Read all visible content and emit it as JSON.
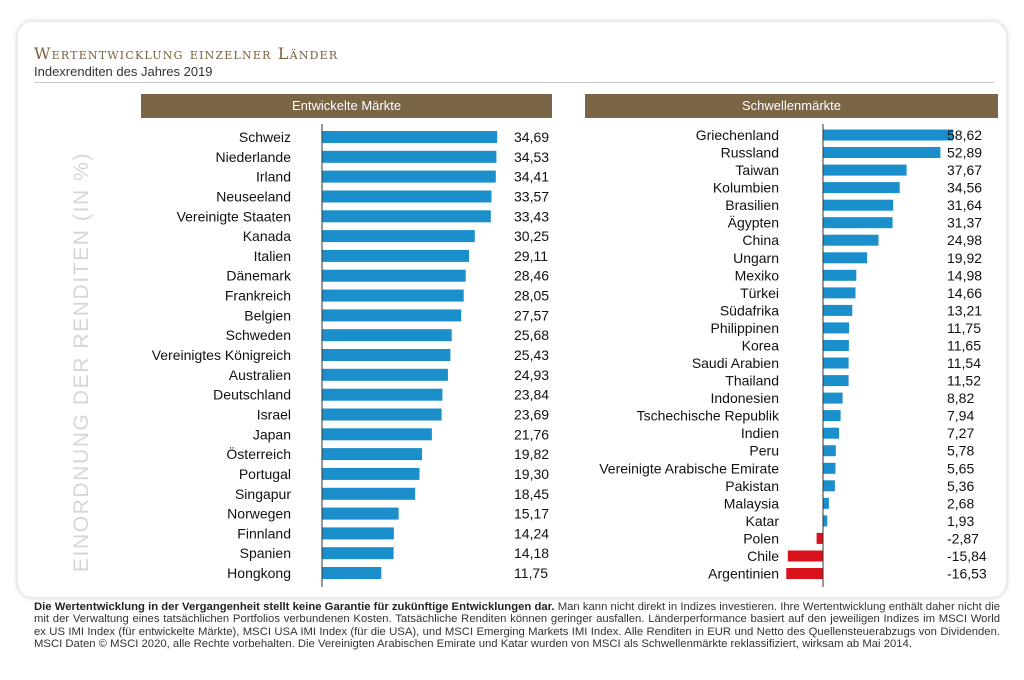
{
  "header": {
    "title": "Wertentwicklung einzelner Länder",
    "subtitle": "Indexrenditen des Jahres 2019"
  },
  "side_label": "EINORDNUNG DER RENDITEN (IN %)",
  "chart_data": [
    {
      "type": "bar",
      "orientation": "horizontal",
      "title": "Entwickelte Märkte",
      "categories": [
        "Schweiz",
        "Niederlande",
        "Irland",
        "Neuseeland",
        "Vereinigte Staaten",
        "Kanada",
        "Italien",
        "Dänemark",
        "Frankreich",
        "Belgien",
        "Schweden",
        "Vereinigtes Königreich",
        "Australien",
        "Deutschland",
        "Israel",
        "Japan",
        "Österreich",
        "Portugal",
        "Singapur",
        "Norwegen",
        "Finnland",
        "Spanien",
        "Hongkong"
      ],
      "values": [
        34.69,
        34.53,
        34.41,
        33.57,
        33.43,
        30.25,
        29.11,
        28.46,
        28.05,
        27.57,
        25.68,
        25.43,
        24.93,
        23.84,
        23.69,
        21.76,
        19.82,
        19.3,
        18.45,
        15.17,
        14.24,
        14.18,
        11.75
      ],
      "value_labels": [
        "34,69",
        "34,53",
        "34,41",
        "33,57",
        "33,43",
        "30,25",
        "29,11",
        "28,46",
        "28,05",
        "27,57",
        "25,68",
        "25,43",
        "24,93",
        "23,84",
        "23,69",
        "21,76",
        "19,82",
        "19,30",
        "18,45",
        "15,17",
        "14,24",
        "14,18",
        "11,75"
      ],
      "positive_color": "#1a8fcc",
      "negative_color": "#d9121c"
    },
    {
      "type": "bar",
      "orientation": "horizontal",
      "title": "Schwellenmärkte",
      "categories": [
        "Griechenland",
        "Russland",
        "Taiwan",
        "Kolumbien",
        "Brasilien",
        "Ägypten",
        "China",
        "Ungarn",
        "Mexiko",
        "Türkei",
        "Südafrika",
        "Philippinen",
        "Korea",
        "Saudi Arabien",
        "Thailand",
        "Indonesien",
        "Tschechische Republik",
        "Indien",
        "Peru",
        "Vereinigte Arabische Emirate",
        "Pakistan",
        "Malaysia",
        "Katar",
        "Polen",
        "Chile",
        "Argentinien"
      ],
      "values": [
        58.62,
        52.89,
        37.67,
        34.56,
        31.64,
        31.37,
        24.98,
        19.92,
        14.98,
        14.66,
        13.21,
        11.75,
        11.65,
        11.54,
        11.52,
        8.82,
        7.94,
        7.27,
        5.78,
        5.65,
        5.36,
        2.68,
        1.93,
        -2.87,
        -15.84,
        -16.53
      ],
      "value_labels": [
        "58,62",
        "52,89",
        "37,67",
        "34,56",
        "31,64",
        "31,37",
        "24,98",
        "19,92",
        "14,98",
        "14,66",
        "13,21",
        "11,75",
        "11,65",
        "11,54",
        "11,52",
        "8,82",
        "7,94",
        "7,27",
        "5,78",
        "5,65",
        "5,36",
        "2,68",
        "1,93",
        "-2,87",
        "-15,84",
        "-16,53"
      ],
      "positive_color": "#1a8fcc",
      "negative_color": "#d9121c"
    }
  ],
  "footer": {
    "bold": "Die Wertentwicklung in der Vergangenheit stellt keine Garantie für zukünftige Entwicklungen dar.",
    "text": " Man kann nicht direkt in Indizes investieren. Ihre Wertentwicklung enthält daher nicht die mit der Verwaltung eines tatsächlichen Portfolios verbundenen Kosten. Tatsächliche Renditen können geringer ausfallen. Länderperformance basiert auf den jeweiligen Indizes im MSCI World ex US IMI Index (für entwickelte Märkte), MSCI USA IMI Index (für die USA), und MSCI Emerging Markets IMI Index. Alle Renditen in EUR und Netto des Quellensteuerabzugs von Dividenden. MSCI Daten © MSCI 2020, alle Rechte vorbehalten. Die Vereinigten Arabischen Emirate und Katar wurden von MSCI als Schwellenmärkte reklassifiziert, wirksam ab Mai 2014."
  }
}
